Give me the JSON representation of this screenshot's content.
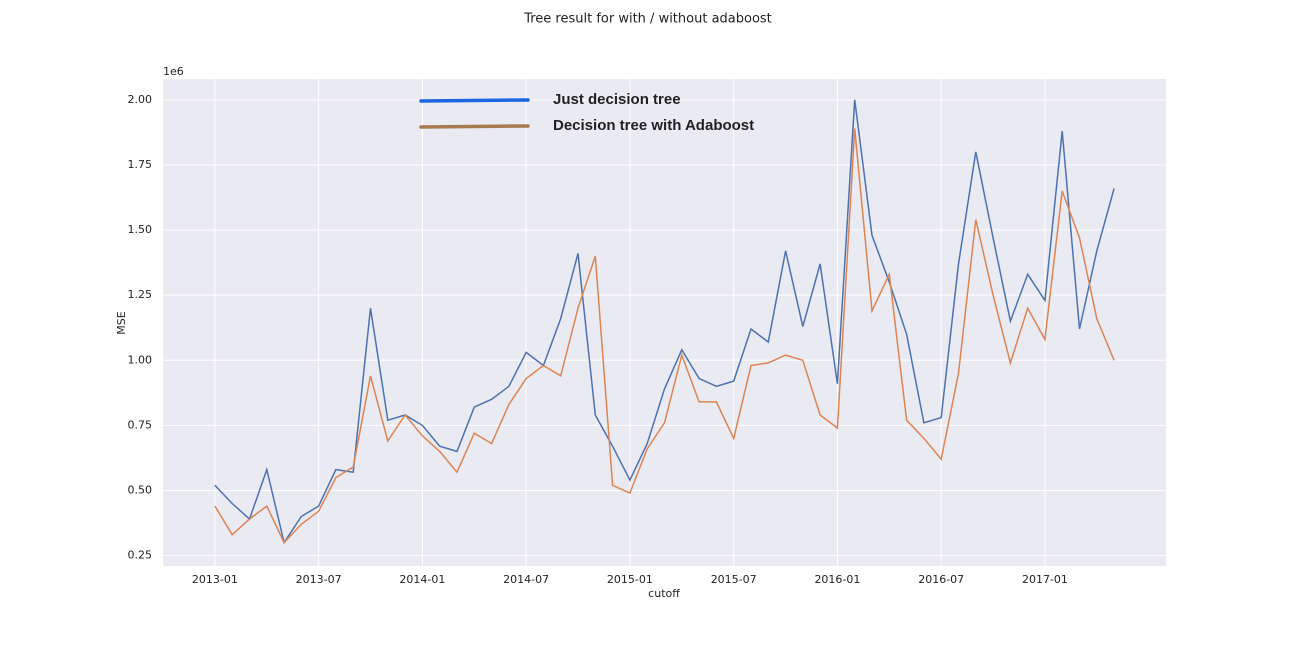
{
  "chart_data": {
    "type": "line",
    "title": "Tree result for with / without adaboost",
    "xlabel": "cutoff",
    "ylabel": "MSE",
    "y_offset_label": "1e6",
    "x": [
      "2013-01",
      "2013-02",
      "2013-03",
      "2013-04",
      "2013-05",
      "2013-06",
      "2013-07",
      "2013-08",
      "2013-09",
      "2013-10",
      "2013-11",
      "2013-12",
      "2014-01",
      "2014-02",
      "2014-03",
      "2014-04",
      "2014-05",
      "2014-06",
      "2014-07",
      "2014-08",
      "2014-09",
      "2014-10",
      "2014-11",
      "2014-12",
      "2015-01",
      "2015-02",
      "2015-03",
      "2015-04",
      "2015-05",
      "2015-06",
      "2015-07",
      "2015-08",
      "2015-09",
      "2015-10",
      "2015-11",
      "2015-12",
      "2016-01",
      "2016-02",
      "2016-03",
      "2016-04",
      "2016-05",
      "2016-06",
      "2016-07",
      "2016-08",
      "2016-09",
      "2016-10",
      "2016-11",
      "2016-12",
      "2017-01",
      "2017-02",
      "2017-03",
      "2017-04",
      "2017-05"
    ],
    "series": [
      {
        "name": "Just decision tree",
        "color": "#4c72b0",
        "legend_color": "#1a66e0",
        "values": [
          0.52,
          0.45,
          0.39,
          0.58,
          0.3,
          0.4,
          0.44,
          0.58,
          0.57,
          1.2,
          0.77,
          0.79,
          0.75,
          0.67,
          0.65,
          0.82,
          0.85,
          0.9,
          1.03,
          0.98,
          1.16,
          1.41,
          0.79,
          0.67,
          0.54,
          0.68,
          0.89,
          1.04,
          0.93,
          0.9,
          0.92,
          1.12,
          1.07,
          1.42,
          1.13,
          1.37,
          0.91,
          2.0,
          1.48,
          1.3,
          1.1,
          0.76,
          0.78,
          1.37,
          1.8,
          1.47,
          1.15,
          1.33,
          1.23,
          1.88,
          1.12,
          1.42,
          1.66
        ]
      },
      {
        "name": "Decision tree with Adaboost",
        "color": "#dd8452",
        "legend_color": "#a87a50",
        "values": [
          0.44,
          0.33,
          0.39,
          0.44,
          0.3,
          0.37,
          0.42,
          0.55,
          0.59,
          0.94,
          0.69,
          0.79,
          0.71,
          0.65,
          0.57,
          0.72,
          0.68,
          0.83,
          0.93,
          0.98,
          0.94,
          1.2,
          1.4,
          0.52,
          0.49,
          0.66,
          0.76,
          1.02,
          0.84,
          0.84,
          0.7,
          0.98,
          0.99,
          1.02,
          1.0,
          0.79,
          0.74,
          1.89,
          1.19,
          1.33,
          0.77,
          0.7,
          0.62,
          0.95,
          1.54,
          1.25,
          0.99,
          1.2,
          1.08,
          1.65,
          1.47,
          1.16,
          1.0
        ]
      }
    ],
    "xlim": [
      "2012-10",
      "2017-08"
    ],
    "xticks": [
      "2013-01",
      "2013-07",
      "2014-01",
      "2014-07",
      "2015-01",
      "2015-07",
      "2016-01",
      "2016-07",
      "2017-01"
    ],
    "ylim": [
      0.21,
      2.08
    ],
    "yticks": [
      {
        "value": 0.25,
        "label": "0.25"
      },
      {
        "value": 0.5,
        "label": "0.50"
      },
      {
        "value": 0.75,
        "label": "0.75"
      },
      {
        "value": 1,
        "label": "1.00"
      },
      {
        "value": 1.25,
        "label": "1.25"
      },
      {
        "value": 1.5,
        "label": "1.50"
      },
      {
        "value": 1.75,
        "label": "1.75"
      },
      {
        "value": 2,
        "label": "2.00"
      }
    ],
    "grid": true,
    "legend": "upper center"
  }
}
